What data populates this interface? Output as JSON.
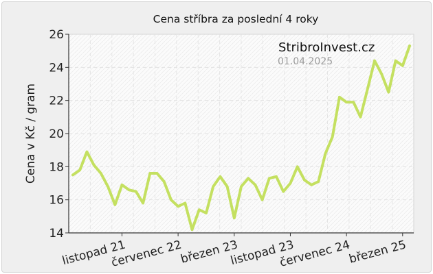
{
  "chart_data": {
    "type": "line",
    "title": "Cena stříbra za poslední 4 roky",
    "ylabel": "Cena v Kč / gram",
    "xlabel": "",
    "ylim": [
      14,
      26
    ],
    "yticks": [
      "14",
      "16",
      "18",
      "20",
      "22",
      "24",
      "26"
    ],
    "xticks": [
      "listopad 21",
      "červenec 22",
      "březen 23",
      "listopad 23",
      "červenec 24",
      "březen 25"
    ],
    "grid": true,
    "line_color": "#c4e060",
    "annotation": {
      "brand": "StribroInvest.cz",
      "date": "01.04.2025"
    },
    "series": [
      {
        "values": [
          17.5,
          17.8,
          18.9,
          18.1,
          17.6,
          16.8,
          15.7,
          16.9,
          16.6,
          16.5,
          15.8,
          17.6,
          17.6,
          17.1,
          16.0,
          15.6,
          15.8,
          14.2,
          15.4,
          15.2,
          16.8,
          17.4,
          16.8,
          14.9,
          16.8,
          17.3,
          16.9,
          16.0,
          17.3,
          17.4,
          16.5,
          17.0,
          18.0,
          17.2,
          16.9,
          17.1,
          18.8,
          19.8,
          22.2,
          21.9,
          21.9,
          21.0,
          22.7,
          24.4,
          23.6,
          22.5,
          24.4,
          24.1,
          25.3
        ]
      }
    ]
  }
}
